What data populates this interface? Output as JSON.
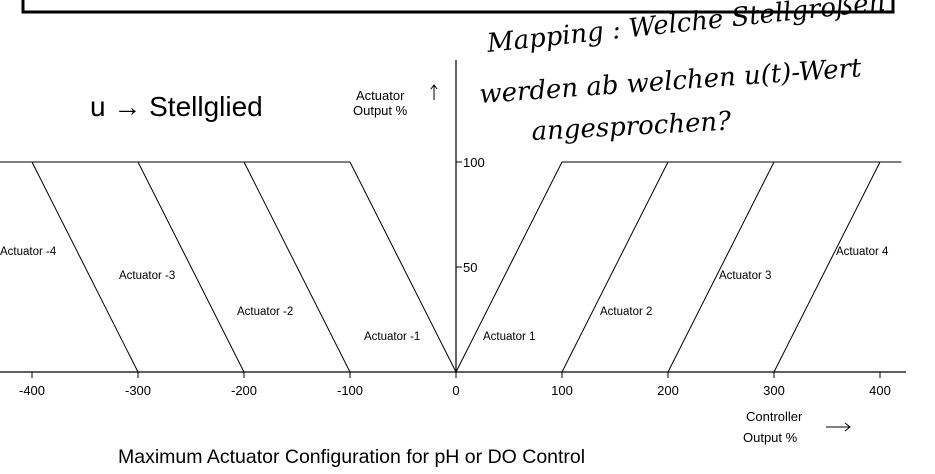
{
  "slide": {
    "title": "u → Stellglied",
    "note_lines": [
      "Mapping : Welche Stellgrößen",
      "werden ab welchen u(t)-Wert",
      "angesprochen?"
    ]
  },
  "chart_data": {
    "type": "line",
    "title": "Maximum Actuator Configuration for pH or DO Control",
    "xlabel": "Controller Output %",
    "ylabel": "Actuator Output %",
    "x_ticks": [
      -400,
      -300,
      -200,
      -100,
      0,
      100,
      200,
      300,
      400
    ],
    "y_ticks": [
      50,
      100
    ],
    "xlim": [
      -430,
      420
    ],
    "ylim": [
      0,
      100
    ],
    "series": [
      {
        "name": "Actuator -4",
        "x": [
          -430,
          -400,
          -300
        ],
        "y": [
          100,
          100,
          0
        ]
      },
      {
        "name": "Actuator -3",
        "x": [
          -430,
          -300,
          -200
        ],
        "y": [
          100,
          100,
          0
        ]
      },
      {
        "name": "Actuator -2",
        "x": [
          -430,
          -200,
          -100
        ],
        "y": [
          100,
          100,
          0
        ]
      },
      {
        "name": "Actuator -1",
        "x": [
          -430,
          -100,
          0
        ],
        "y": [
          100,
          100,
          0
        ]
      },
      {
        "name": "Actuator 1",
        "x": [
          0,
          100,
          420
        ],
        "y": [
          0,
          100,
          100
        ]
      },
      {
        "name": "Actuator 2",
        "x": [
          100,
          200,
          420
        ],
        "y": [
          0,
          100,
          100
        ]
      },
      {
        "name": "Actuator 3",
        "x": [
          200,
          300,
          420
        ],
        "y": [
          0,
          100,
          100
        ]
      },
      {
        "name": "Actuator 4",
        "x": [
          300,
          400,
          420
        ],
        "y": [
          0,
          100,
          100
        ]
      }
    ],
    "colors": {
      "line": "#000000",
      "background": "#ffffff"
    }
  }
}
